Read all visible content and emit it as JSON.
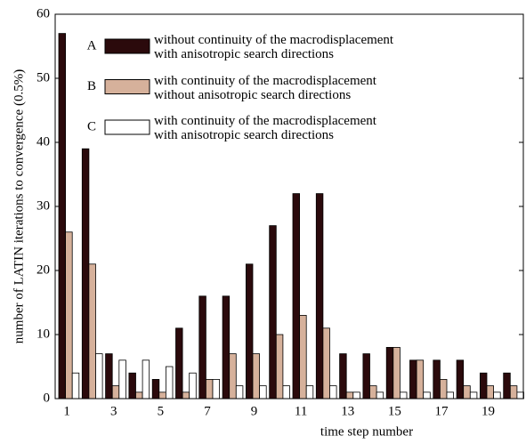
{
  "chart_data": {
    "type": "bar",
    "xlabel": "time step number",
    "ylabel": "number of LATIN iterations to convergence (0.5%)",
    "categories": [
      "1",
      null,
      "3",
      null,
      "5",
      null,
      "7",
      null,
      "9",
      null,
      "11",
      null,
      "13",
      null,
      "15",
      null,
      "17",
      null,
      "19",
      null
    ],
    "series": [
      {
        "key": "A",
        "name": "without continuity of the macrodisplacement\nwith anisotropic search directions",
        "color": "#2b0a0c",
        "values": [
          57,
          39,
          7,
          4,
          3,
          11,
          16,
          16,
          21,
          27,
          32,
          32,
          7,
          7,
          8,
          6,
          6,
          6,
          4,
          4
        ]
      },
      {
        "key": "B",
        "name": "with continuity of the macrodisplacement\nwithout anisotropic search directions",
        "color": "#d6b19b",
        "values": [
          26,
          21,
          2,
          1,
          1,
          1,
          3,
          7,
          7,
          10,
          13,
          11,
          1,
          2,
          8,
          6,
          3,
          2,
          2,
          2
        ]
      },
      {
        "key": "C",
        "name": "with continuity of the macrodisplacement\nwith anisotropic search directions",
        "color": "#ffffff",
        "values": [
          4,
          7,
          6,
          6,
          5,
          4,
          3,
          2,
          2,
          2,
          2,
          2,
          1,
          1,
          1,
          1,
          1,
          1,
          1,
          1
        ]
      }
    ],
    "ylim": [
      0,
      60
    ],
    "yticks": [
      0,
      10,
      20,
      30,
      40,
      50,
      60
    ],
    "grid": false
  }
}
